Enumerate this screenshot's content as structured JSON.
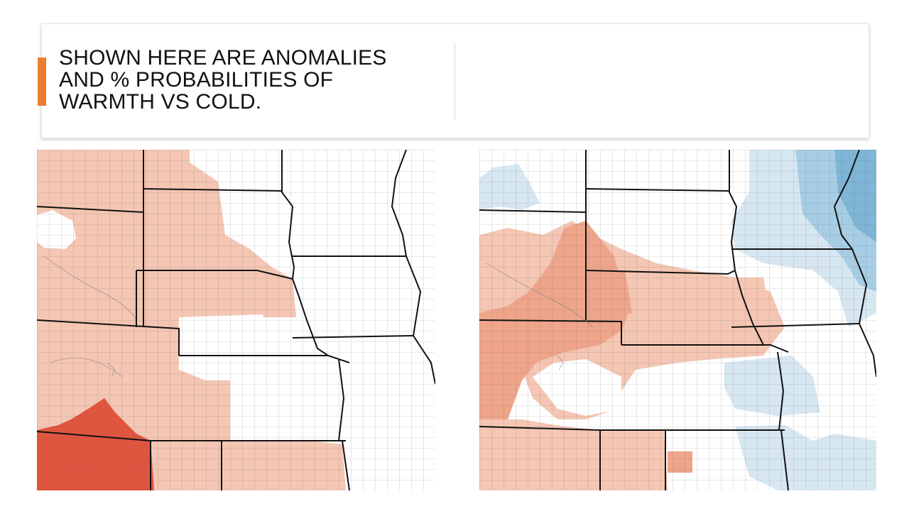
{
  "slide": {
    "title": "SHOWN HERE ARE ANOMALIES AND % PROBABILITIES OF WARMTH VS COLD."
  },
  "colors": {
    "accent": "#ed7d31",
    "warm_light": "#f4c6b3",
    "warm_mid": "#eea58a",
    "warm_strong": "#e0553f",
    "cool_light": "#d7e7f1",
    "cool_mid": "#a7cde4",
    "cool_strong": "#7fb5d6",
    "county_line": "#555555",
    "state_line": "#111111"
  },
  "maps": [
    {
      "name": "temperature-anomaly-map",
      "palette": "warm-only"
    },
    {
      "name": "temperature-probability-map",
      "palette": "warm-cool"
    }
  ]
}
